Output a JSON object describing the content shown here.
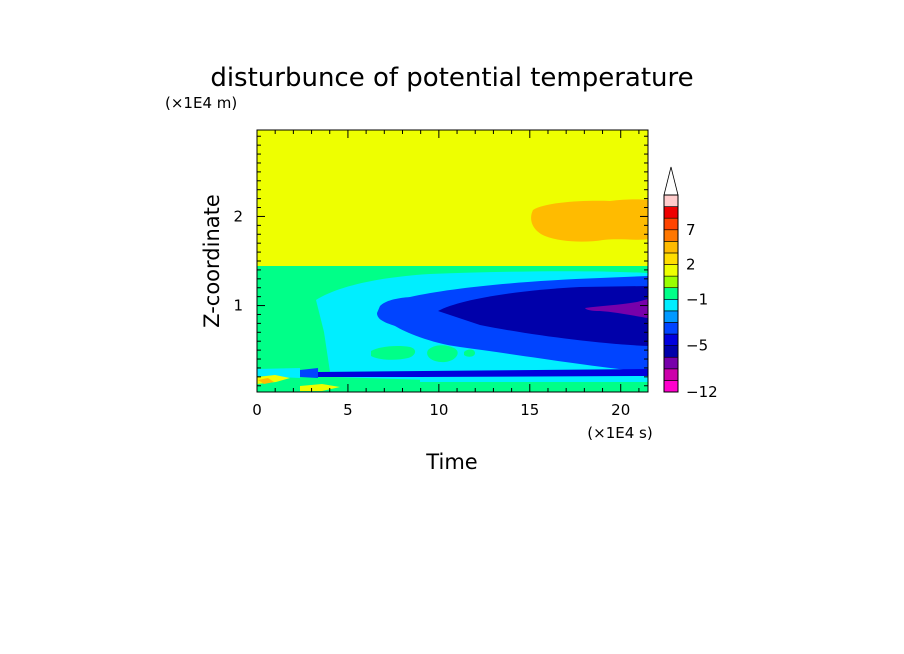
{
  "chart_data": {
    "type": "heatmap",
    "title": "disturbunce of potential temperature",
    "xlabel": "Time",
    "ylabel": "Z-coordinate",
    "x_unit": "(×1E4 s)",
    "y_unit": "(×1E4 m)",
    "xlim": [
      0,
      21.5
    ],
    "ylim": [
      0.03,
      2.97
    ],
    "x_ticks": [
      "0",
      "5",
      "10",
      "15",
      "20"
    ],
    "y_ticks": [
      "1",
      "2"
    ],
    "x_tick_values": [
      0,
      5,
      10,
      15,
      20
    ],
    "y_tick_values": [
      1,
      2
    ],
    "colorbar": {
      "labels": [
        "7",
        "2",
        "−1",
        "−5",
        "−12"
      ],
      "label_values": [
        7,
        2,
        -1,
        -5,
        -12
      ],
      "levels": [
        -12,
        -10,
        -8,
        -6,
        -5,
        -4,
        -3,
        -2,
        -1,
        0,
        1,
        2,
        3,
        5,
        7,
        9,
        11
      ],
      "colors": [
        "#ff00cc",
        "#cc00aa",
        "#7700aa",
        "#0000aa",
        "#0000dd",
        "#0044ff",
        "#0099ff",
        "#00eeff",
        "#00ff88",
        "#99ff00",
        "#eeff00",
        "#ffdd00",
        "#ffbb00",
        "#ff7700",
        "#ff4400",
        "#ee0000",
        "#ffcccc"
      ],
      "extend": "max",
      "top_color": "#ffffff"
    },
    "grid": false,
    "legend": "right",
    "regions": [
      {
        "name": "upper-layer",
        "level_range": "0 to 1",
        "color": "#eeff00",
        "x": [
          0,
          21.5
        ],
        "y": [
          1.47,
          2.97
        ]
      },
      {
        "name": "upper-warm-patch",
        "level_range": "1 to 2",
        "color": "#ffbb00",
        "x": [
          15,
          21.5
        ],
        "y": [
          1.8,
          2.1
        ]
      },
      {
        "name": "lower-layer",
        "level_range": "-1 to 0",
        "color": "#00ff88",
        "x": [
          0,
          21.5
        ],
        "y": [
          0.03,
          1.47
        ]
      },
      {
        "name": "cool-band",
        "level_range": "-2 to -1",
        "color": "#00eeff",
        "x": [
          3.3,
          21.5
        ],
        "y": [
          0.3,
          1.35
        ]
      },
      {
        "name": "colder-band",
        "level_range": "-4 to -2",
        "color": "#0044ff",
        "x": [
          6.8,
          21.5
        ],
        "y": [
          0.55,
          1.3
        ]
      },
      {
        "name": "cold-core",
        "level_range": "-6 to -4",
        "color": "#0000aa",
        "x": [
          10,
          21.5
        ],
        "y": [
          0.6,
          1.2
        ]
      },
      {
        "name": "coldest-patch",
        "level_range": "-8 to -6",
        "color": "#7700aa",
        "x": [
          18,
          21.5
        ],
        "y": [
          0.9,
          1.05
        ]
      },
      {
        "name": "near-surface-cold-line",
        "level_range": "-5 to -4",
        "color": "#0000dd",
        "x": [
          3.5,
          21.5
        ],
        "y": [
          0.2,
          0.25
        ]
      }
    ]
  }
}
